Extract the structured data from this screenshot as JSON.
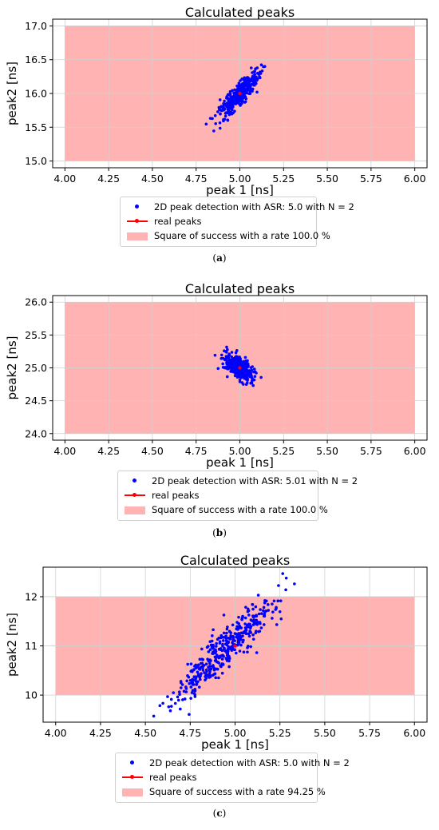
{
  "chart_data": [
    {
      "type": "scatter",
      "title": "Calculated peaks",
      "xlabel": "peak 1 [ns]",
      "ylabel": "peak2 [ns]",
      "xlim": [
        3.93,
        6.07
      ],
      "ylim": [
        14.9,
        17.1
      ],
      "x_ticks": [
        "4.00",
        "4.25",
        "4.50",
        "4.75",
        "5.00",
        "5.25",
        "5.50",
        "5.75",
        "6.00"
      ],
      "y_ticks": [
        "15.0",
        "15.5",
        "16.0",
        "16.5",
        "17.0"
      ],
      "x_tick_values": [
        4.0,
        4.25,
        4.5,
        4.75,
        5.0,
        5.25,
        5.5,
        5.75,
        6.0
      ],
      "y_tick_values": [
        15.0,
        15.5,
        16.0,
        16.5,
        17.0
      ],
      "grid": true,
      "success_square": {
        "x": [
          4.0,
          6.0
        ],
        "y": [
          15.0,
          17.0
        ],
        "color": "#ffb3b3"
      },
      "real_peak": {
        "x": 5.0,
        "y": 16.0,
        "color": "#ff0000"
      },
      "scatter": {
        "center": [
          5.0,
          16.0
        ],
        "count": 400,
        "sd_x": 0.055,
        "sd_y": 0.17,
        "corr": 0.88,
        "color": "#0000ff"
      },
      "legend": [
        {
          "symbol": "dot",
          "label": "2D peak detection with ASR: 5.0 with N = 2"
        },
        {
          "symbol": "line",
          "label": "real peaks"
        },
        {
          "symbol": "rect",
          "label": "Square of success with a rate 100.0 %"
        }
      ],
      "legend_position": "below",
      "caption_label": "a"
    },
    {
      "type": "scatter",
      "title": "Calculated peaks",
      "xlabel": "peak 1 [ns]",
      "ylabel": "peak2 [ns]",
      "xlim": [
        3.93,
        6.07
      ],
      "ylim": [
        23.9,
        26.1
      ],
      "x_ticks": [
        "4.00",
        "4.25",
        "4.50",
        "4.75",
        "5.00",
        "5.25",
        "5.50",
        "5.75",
        "6.00"
      ],
      "y_ticks": [
        "24.0",
        "24.5",
        "25.0",
        "25.5",
        "26.0"
      ],
      "x_tick_values": [
        4.0,
        4.25,
        4.5,
        4.75,
        5.0,
        5.25,
        5.5,
        5.75,
        6.0
      ],
      "y_tick_values": [
        24.0,
        24.5,
        25.0,
        25.5,
        26.0
      ],
      "grid": true,
      "success_square": {
        "x": [
          4.0,
          6.0
        ],
        "y": [
          24.0,
          26.0
        ],
        "color": "#ffb3b3"
      },
      "real_peak": {
        "x": 5.0,
        "y": 25.0,
        "color": "#ff0000"
      },
      "scatter": {
        "center": [
          5.0,
          25.0
        ],
        "count": 400,
        "sd_x": 0.04,
        "sd_y": 0.1,
        "corr": -0.55,
        "color": "#0000ff"
      },
      "legend": [
        {
          "symbol": "dot",
          "label": "2D peak detection with ASR: 5.01 with N = 2"
        },
        {
          "symbol": "line",
          "label": "real peaks"
        },
        {
          "symbol": "rect",
          "label": "Square of success with a rate 100.0 %"
        }
      ],
      "legend_position": "below",
      "caption_label": "b"
    },
    {
      "type": "scatter",
      "title": "Calculated peaks",
      "xlabel": "peak 1 [ns]",
      "ylabel": "peak2 [ns]",
      "xlim": [
        3.93,
        6.07
      ],
      "ylim": [
        9.45,
        12.6
      ],
      "x_ticks": [
        "4.00",
        "4.25",
        "4.50",
        "4.75",
        "5.00",
        "5.25",
        "5.50",
        "5.75",
        "6.00"
      ],
      "y_ticks": [
        "10",
        "11",
        "12"
      ],
      "x_tick_values": [
        4.0,
        4.25,
        4.5,
        4.75,
        5.0,
        5.25,
        5.5,
        5.75,
        6.0
      ],
      "y_tick_values": [
        10,
        11,
        12
      ],
      "grid": true,
      "success_square": {
        "x": [
          4.0,
          6.0
        ],
        "y": [
          10.0,
          12.0
        ],
        "color": "#ffb3b3"
      },
      "real_peak": {
        "x": 5.0,
        "y": 11.0,
        "color": "#ff0000"
      },
      "scatter": {
        "center": [
          4.95,
          10.95
        ],
        "count": 400,
        "sd_x": 0.15,
        "sd_y": 0.55,
        "corr": 0.93,
        "color": "#0000ff"
      },
      "legend": [
        {
          "symbol": "dot",
          "label": "2D peak detection with ASR: 5.0 with N = 2"
        },
        {
          "symbol": "line",
          "label": "real peaks"
        },
        {
          "symbol": "rect",
          "label": "Square of success with a rate 94.25 %"
        }
      ],
      "legend_position": "below",
      "caption_label": "c"
    }
  ]
}
